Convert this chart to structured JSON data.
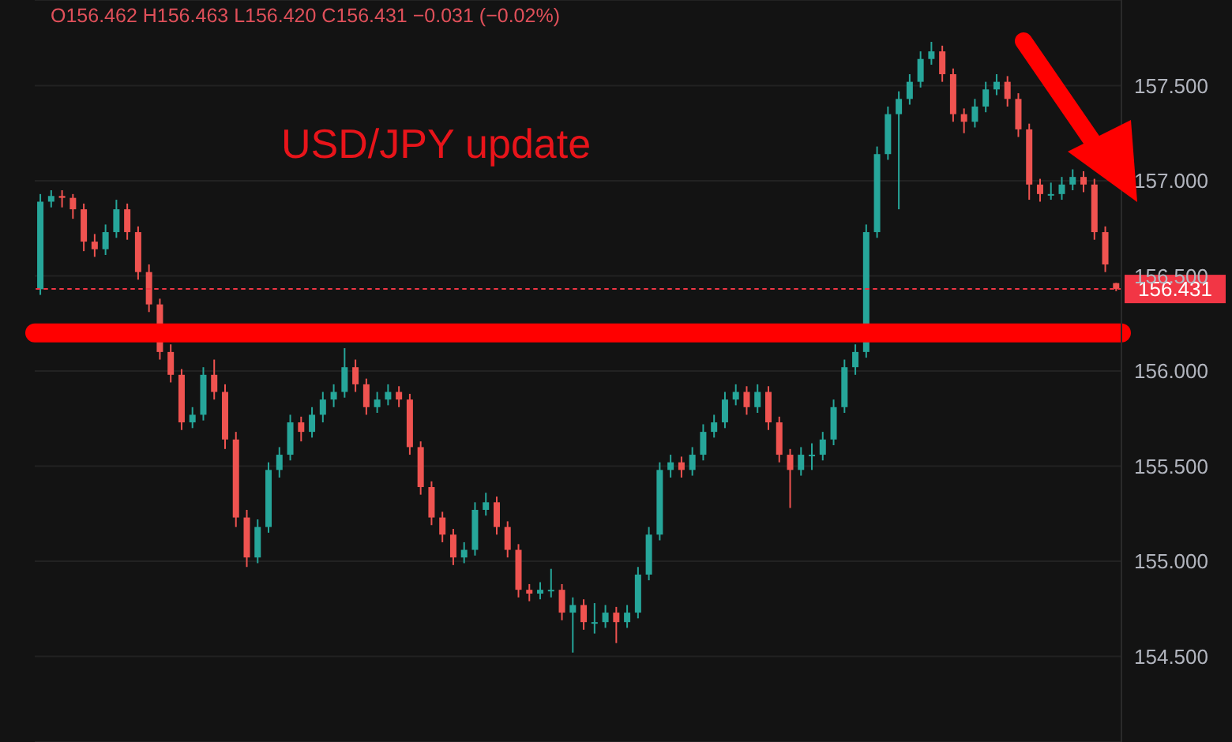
{
  "chart_data": {
    "type": "candlestick",
    "title": "USD/JPY update",
    "annotations": [
      "O156.462 H156.463 L156.420 C156.431 −0.031 (−0.02%)"
    ],
    "categories": [
      null,
      null,
      null,
      null,
      null,
      null,
      null,
      null,
      null,
      null,
      null,
      null,
      null,
      null,
      null,
      null,
      null,
      null,
      null,
      null,
      null,
      null,
      null,
      null,
      null,
      null,
      null,
      null,
      null,
      null,
      null,
      null,
      null,
      null,
      null,
      null,
      null,
      null,
      null,
      null,
      null,
      null,
      null,
      null,
      null,
      null,
      null,
      null,
      null,
      null,
      null,
      null,
      null,
      null,
      null,
      null,
      null,
      null,
      null,
      null,
      null,
      null,
      null,
      null,
      null,
      null,
      null,
      null,
      null,
      null,
      null,
      null,
      null,
      null,
      null,
      null,
      null,
      null,
      null,
      null,
      null,
      null,
      null,
      null,
      null,
      null,
      null,
      null,
      null,
      null,
      null,
      null,
      null,
      null,
      null,
      null,
      null,
      null,
      null,
      null
    ],
    "ohlc": [
      [
        156.43,
        156.93,
        156.4,
        156.89
      ],
      [
        156.89,
        156.95,
        156.86,
        156.92
      ],
      [
        156.92,
        156.95,
        156.86,
        156.91
      ],
      [
        156.91,
        156.93,
        156.8,
        156.85
      ],
      [
        156.85,
        156.88,
        156.63,
        156.68
      ],
      [
        156.68,
        156.72,
        156.6,
        156.64
      ],
      [
        156.64,
        156.77,
        156.61,
        156.73
      ],
      [
        156.73,
        156.9,
        156.7,
        156.85
      ],
      [
        156.85,
        156.88,
        156.69,
        156.73
      ],
      [
        156.73,
        156.76,
        156.48,
        156.52
      ],
      [
        156.52,
        156.56,
        156.31,
        156.35
      ],
      [
        156.35,
        156.38,
        156.06,
        156.1
      ],
      [
        156.1,
        156.14,
        155.94,
        155.98
      ],
      [
        155.98,
        156.01,
        155.69,
        155.73
      ],
      [
        155.73,
        155.81,
        155.7,
        155.77
      ],
      [
        155.77,
        156.02,
        155.74,
        155.98
      ],
      [
        155.98,
        156.06,
        155.85,
        155.89
      ],
      [
        155.89,
        155.93,
        155.59,
        155.64
      ],
      [
        155.64,
        155.68,
        155.18,
        155.23
      ],
      [
        155.23,
        155.27,
        154.97,
        155.02
      ],
      [
        155.02,
        155.22,
        154.99,
        155.18
      ],
      [
        155.18,
        155.52,
        155.15,
        155.48
      ],
      [
        155.48,
        155.6,
        155.44,
        155.56
      ],
      [
        155.56,
        155.77,
        155.53,
        155.73
      ],
      [
        155.73,
        155.76,
        155.63,
        155.68
      ],
      [
        155.68,
        155.81,
        155.65,
        155.77
      ],
      [
        155.77,
        155.89,
        155.73,
        155.85
      ],
      [
        155.85,
        155.93,
        155.81,
        155.89
      ],
      [
        155.89,
        156.12,
        155.86,
        156.02
      ],
      [
        156.02,
        156.06,
        155.89,
        155.93
      ],
      [
        155.93,
        155.96,
        155.77,
        155.81
      ],
      [
        155.81,
        155.89,
        155.78,
        155.85
      ],
      [
        155.85,
        155.93,
        155.82,
        155.89
      ],
      [
        155.89,
        155.92,
        155.81,
        155.85
      ],
      [
        155.85,
        155.88,
        155.56,
        155.6
      ],
      [
        155.6,
        155.63,
        155.35,
        155.39
      ],
      [
        155.39,
        155.42,
        155.19,
        155.23
      ],
      [
        155.23,
        155.26,
        155.1,
        155.14
      ],
      [
        155.14,
        155.17,
        154.98,
        155.02
      ],
      [
        155.02,
        155.1,
        154.99,
        155.06
      ],
      [
        155.06,
        155.31,
        155.03,
        155.27
      ],
      [
        155.27,
        155.36,
        155.24,
        155.31
      ],
      [
        155.31,
        155.34,
        155.14,
        155.18
      ],
      [
        155.18,
        155.21,
        155.02,
        155.06
      ],
      [
        155.06,
        155.09,
        154.81,
        154.85
      ],
      [
        154.85,
        154.88,
        154.79,
        154.83
      ],
      [
        154.83,
        154.89,
        154.8,
        154.85
      ],
      [
        154.85,
        154.96,
        154.81,
        154.85
      ],
      [
        154.85,
        154.88,
        154.69,
        154.73
      ],
      [
        154.73,
        154.81,
        154.52,
        154.77
      ],
      [
        154.77,
        154.8,
        154.64,
        154.68
      ],
      [
        154.68,
        154.78,
        154.62,
        154.68
      ],
      [
        154.68,
        154.77,
        154.65,
        154.73
      ],
      [
        154.73,
        154.76,
        154.57,
        154.68
      ],
      [
        154.68,
        154.77,
        154.65,
        154.73
      ],
      [
        154.73,
        154.97,
        154.7,
        154.93
      ],
      [
        154.93,
        155.18,
        154.9,
        155.14
      ],
      [
        155.14,
        155.52,
        155.11,
        155.48
      ],
      [
        155.48,
        155.56,
        155.44,
        155.52
      ],
      [
        155.52,
        155.55,
        155.44,
        155.48
      ],
      [
        155.48,
        155.6,
        155.45,
        155.56
      ],
      [
        155.56,
        155.72,
        155.53,
        155.68
      ],
      [
        155.68,
        155.77,
        155.65,
        155.73
      ],
      [
        155.73,
        155.89,
        155.7,
        155.85
      ],
      [
        155.85,
        155.93,
        155.82,
        155.89
      ],
      [
        155.89,
        155.92,
        155.77,
        155.81
      ],
      [
        155.81,
        155.93,
        155.78,
        155.89
      ],
      [
        155.89,
        155.92,
        155.69,
        155.73
      ],
      [
        155.73,
        155.76,
        155.52,
        155.56
      ],
      [
        155.56,
        155.59,
        155.28,
        155.48
      ],
      [
        155.48,
        155.6,
        155.45,
        155.56
      ],
      [
        155.56,
        155.62,
        155.48,
        155.56
      ],
      [
        155.56,
        155.68,
        155.53,
        155.64
      ],
      [
        155.64,
        155.85,
        155.61,
        155.81
      ],
      [
        155.81,
        156.06,
        155.78,
        156.02
      ],
      [
        156.02,
        156.14,
        155.98,
        156.1
      ],
      [
        156.1,
        156.77,
        156.07,
        156.73
      ],
      [
        156.73,
        157.18,
        156.7,
        157.14
      ],
      [
        157.14,
        157.39,
        157.11,
        157.35
      ],
      [
        157.35,
        157.47,
        156.85,
        157.43
      ],
      [
        157.43,
        157.56,
        157.4,
        157.52
      ],
      [
        157.52,
        157.68,
        157.49,
        157.64
      ],
      [
        157.64,
        157.73,
        157.61,
        157.68
      ],
      [
        157.68,
        157.71,
        157.52,
        157.56
      ],
      [
        157.56,
        157.59,
        157.31,
        157.35
      ],
      [
        157.35,
        157.38,
        157.25,
        157.31
      ],
      [
        157.31,
        157.43,
        157.28,
        157.39
      ],
      [
        157.39,
        157.52,
        157.36,
        157.48
      ],
      [
        157.48,
        157.56,
        157.45,
        157.52
      ],
      [
        157.52,
        157.55,
        157.39,
        157.43
      ],
      [
        157.43,
        157.46,
        157.23,
        157.27
      ],
      [
        157.27,
        157.3,
        156.9,
        156.98
      ],
      [
        156.98,
        157.01,
        156.89,
        156.93
      ],
      [
        156.93,
        156.99,
        156.9,
        156.93
      ],
      [
        156.93,
        157.02,
        156.9,
        156.98
      ],
      [
        156.98,
        157.06,
        156.95,
        157.02
      ],
      [
        157.02,
        157.05,
        156.94,
        156.98
      ],
      [
        156.98,
        157.01,
        156.69,
        156.73
      ],
      [
        156.73,
        156.76,
        156.52,
        156.56
      ],
      [
        156.462,
        156.463,
        156.42,
        156.431
      ]
    ],
    "colors": [
      "#26a69a",
      "#26a69a",
      "#ef5350",
      "#ef5350",
      "#ef5350",
      "#ef5350",
      "#26a69a",
      "#26a69a",
      "#ef5350",
      "#ef5350",
      "#ef5350",
      "#ef5350",
      "#ef5350",
      "#ef5350",
      "#26a69a",
      "#26a69a",
      "#ef5350",
      "#ef5350",
      "#ef5350",
      "#ef5350",
      "#26a69a",
      "#26a69a",
      "#26a69a",
      "#26a69a",
      "#ef5350",
      "#26a69a",
      "#26a69a",
      "#26a69a",
      "#26a69a",
      "#ef5350",
      "#ef5350",
      "#26a69a",
      "#26a69a",
      "#ef5350",
      "#ef5350",
      "#ef5350",
      "#ef5350",
      "#ef5350",
      "#ef5350",
      "#26a69a",
      "#26a69a",
      "#26a69a",
      "#ef5350",
      "#ef5350",
      "#ef5350",
      "#ef5350",
      "#26a69a",
      "#26a69a",
      "#ef5350",
      "#26a69a",
      "#ef5350",
      "#26a69a",
      "#26a69a",
      "#ef5350",
      "#26a69a",
      "#26a69a",
      "#26a69a",
      "#26a69a",
      "#26a69a",
      "#ef5350",
      "#26a69a",
      "#26a69a",
      "#26a69a",
      "#26a69a",
      "#26a69a",
      "#ef5350",
      "#26a69a",
      "#ef5350",
      "#ef5350",
      "#ef5350",
      "#26a69a",
      "#26a69a",
      "#26a69a",
      "#26a69a",
      "#26a69a",
      "#26a69a",
      "#26a69a",
      "#26a69a",
      "#26a69a",
      "#26a69a",
      "#26a69a",
      "#26a69a",
      "#26a69a",
      "#ef5350",
      "#ef5350",
      "#ef5350",
      "#26a69a",
      "#26a69a",
      "#26a69a",
      "#ef5350",
      "#ef5350",
      "#ef5350",
      "#ef5350",
      "#26a69a",
      "#26a69a",
      "#26a69a",
      "#ef5350",
      "#ef5350",
      "#ef5350",
      "#ef5350"
    ],
    "ylim": [
      154.05,
      157.95
    ],
    "yticks": [
      {
        "value": 154.5,
        "label": "154.500"
      },
      {
        "value": 155,
        "label": "155.000"
      },
      {
        "value": 155.5,
        "label": "155.500"
      },
      {
        "value": 156,
        "label": "156.000"
      },
      {
        "value": 156.5,
        "label": "156.500"
      },
      {
        "value": 157,
        "label": "157.000"
      },
      {
        "value": 157.5,
        "label": "157.500"
      }
    ],
    "tick_labels": "y",
    "grid": "y",
    "ref_lines": [
      {
        "axis": "y",
        "value": 156.2,
        "label": null,
        "color": "#ff0000",
        "line_style": "solid"
      },
      {
        "axis": "y",
        "value": 156.431,
        "label": "156.431",
        "color": "#f23645",
        "line_style": "dotted"
      }
    ]
  }
}
